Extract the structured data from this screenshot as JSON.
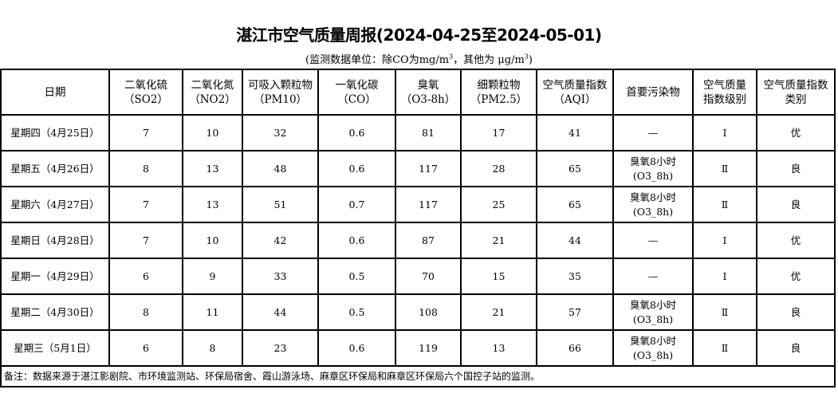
{
  "title": "湛江市空气质量周报(2024-04-25至2024-05-01)",
  "unit_note": {
    "prefix": "(监测数据单位：除CO为mg/m",
    "mid": "，其他为 μg/m",
    "sup": "3",
    "suffix": ")"
  },
  "headers": [
    {
      "l1": "日期",
      "l2": ""
    },
    {
      "l1": "二氧化硫",
      "l2": "（SO2）"
    },
    {
      "l1": "二氧化氮",
      "l2": "（NO2）"
    },
    {
      "l1": "可吸入颗粒物",
      "l2": "（PM10）"
    },
    {
      "l1": "一氧化碳",
      "l2": "（CO）"
    },
    {
      "l1": "臭氧",
      "l2": "（O3-8h）"
    },
    {
      "l1": "细颗粒物",
      "l2": "（PM2.5）"
    },
    {
      "l1": "空气质量指数",
      "l2": "（AQI）"
    },
    {
      "l1": "首要污染物",
      "l2": ""
    },
    {
      "l1": "空气质量",
      "l2": "指数级别"
    },
    {
      "l1": "空气质量指数",
      "l2": "类别"
    }
  ],
  "rows": [
    [
      "星期四（4月25日）",
      "7",
      "10",
      "32",
      "0.6",
      "81",
      "17",
      "41",
      "—",
      "",
      "Ⅰ",
      "优"
    ],
    [
      "星期五（4月26日）",
      "8",
      "13",
      "48",
      "0.6",
      "117",
      "28",
      "65",
      "臭氧8小时",
      "(O3_8h)",
      "Ⅱ",
      "良"
    ],
    [
      "星期六（4月27日）",
      "7",
      "13",
      "51",
      "0.7",
      "117",
      "25",
      "65",
      "臭氧8小时",
      "(O3_8h)",
      "Ⅱ",
      "良"
    ],
    [
      "星期日（4月28日）",
      "7",
      "10",
      "42",
      "0.6",
      "87",
      "21",
      "44",
      "—",
      "",
      "Ⅰ",
      "优"
    ],
    [
      "星期一（4月29日）",
      "6",
      "9",
      "33",
      "0.5",
      "70",
      "15",
      "35",
      "—",
      "",
      "Ⅰ",
      "优"
    ],
    [
      "星期二（4月30日）",
      "8",
      "11",
      "44",
      "0.5",
      "108",
      "21",
      "57",
      "臭氧8小时",
      "(O3_8h)",
      "Ⅱ",
      "良"
    ],
    [
      "星期三（5月1日）",
      "6",
      "8",
      "23",
      "0.6",
      "119",
      "13",
      "66",
      "臭氧8小时",
      "(O3_8h)",
      "Ⅱ",
      "良"
    ]
  ],
  "footnote": "备注：数据来源于湛江影剧院、市环境监测站、环保局宿舍、霞山游泳场、麻章区环保局和麻章区环保局六个国控子站的监测。"
}
